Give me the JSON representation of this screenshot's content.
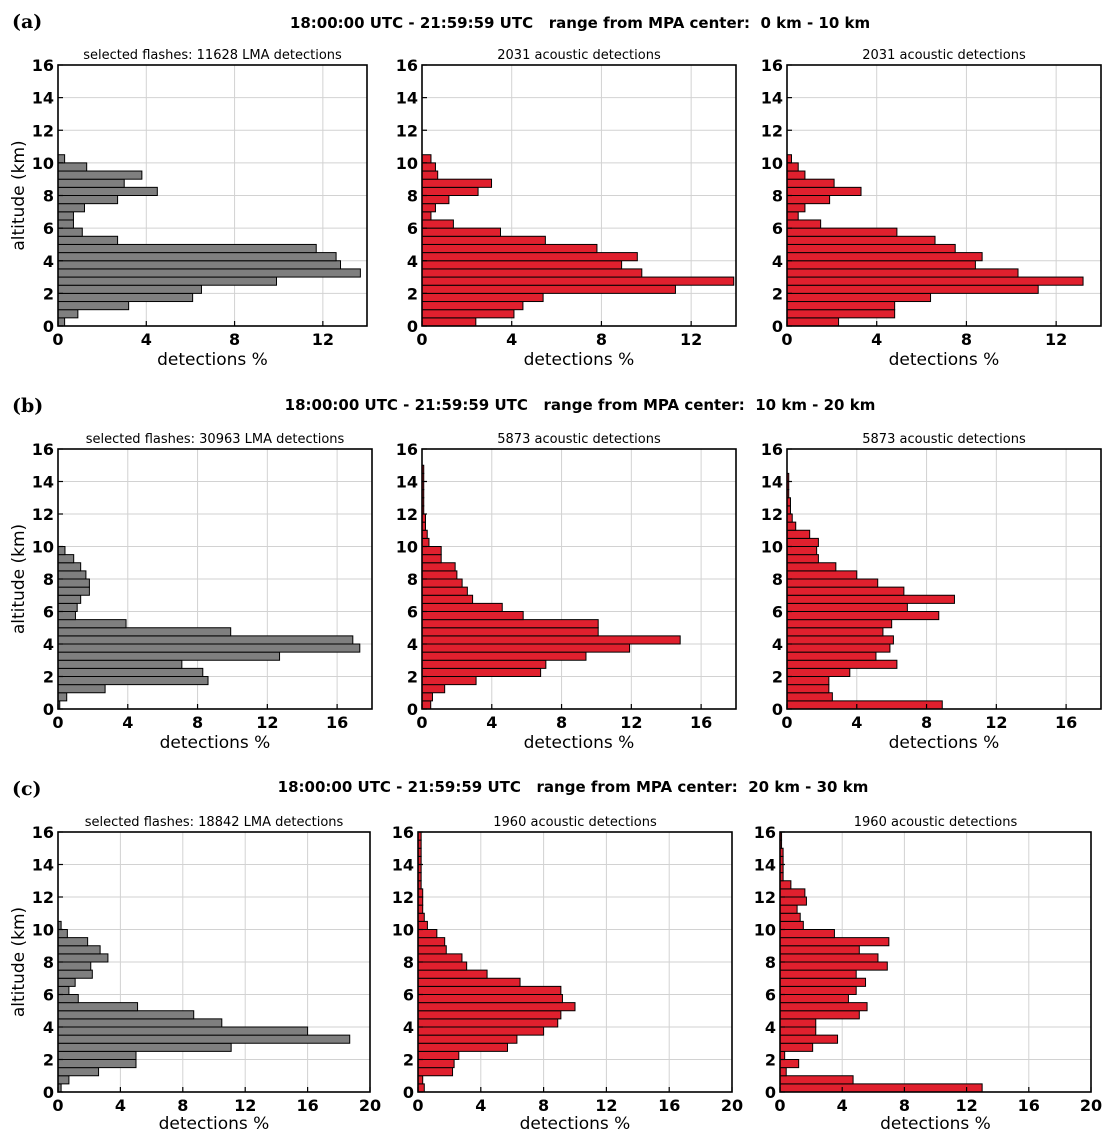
{
  "chart_data": [
    {
      "row_label": "(a)",
      "title": "18:00:00 UTC - 21:59:59 UTC   range from MPA center:  0 km - 10 km",
      "panels": [
        {
          "type": "bar",
          "orientation": "horizontal",
          "subtitle": "selected flashes: 11628 LMA detections",
          "color": "#7f7f7f",
          "xlabel": "detections %",
          "ylabel": "altitude (km)",
          "xlim": [
            0,
            14
          ],
          "xticks": [
            0,
            4,
            8,
            12
          ],
          "ylim": [
            0,
            16
          ],
          "yticks": [
            0,
            2,
            4,
            6,
            8,
            10,
            12,
            14,
            16
          ],
          "bin_km": 0.5,
          "values": [
            0.3,
            0.9,
            3.2,
            6.1,
            6.5,
            9.9,
            13.7,
            12.8,
            12.6,
            11.7,
            2.7,
            1.1,
            0.7,
            0.7,
            1.2,
            2.7,
            4.5,
            3.0,
            3.8,
            1.3,
            0.3
          ]
        },
        {
          "type": "bar",
          "orientation": "horizontal",
          "subtitle": "2031 acoustic detections",
          "color": "#e0202e",
          "xlabel": "detections %",
          "xlim": [
            0,
            14
          ],
          "xticks": [
            0,
            4,
            8,
            12
          ],
          "ylim": [
            0,
            16
          ],
          "yticks": [
            0,
            2,
            4,
            6,
            8,
            10,
            12,
            14,
            16
          ],
          "bin_km": 0.5,
          "values": [
            2.4,
            4.1,
            4.5,
            5.4,
            11.3,
            13.9,
            9.8,
            8.9,
            9.6,
            7.8,
            5.5,
            3.5,
            1.4,
            0.4,
            0.6,
            1.2,
            2.5,
            3.1,
            0.7,
            0.6,
            0.4
          ]
        },
        {
          "type": "bar",
          "orientation": "horizontal",
          "subtitle": "2031 acoustic detections",
          "color": "#e0202e",
          "xlabel": "detections %",
          "xlim": [
            0,
            14
          ],
          "xticks": [
            0,
            4,
            8,
            12
          ],
          "ylim": [
            0,
            16
          ],
          "yticks": [
            0,
            2,
            4,
            6,
            8,
            10,
            12,
            14,
            16
          ],
          "bin_km": 0.5,
          "values": [
            2.3,
            4.8,
            4.8,
            6.4,
            11.2,
            13.2,
            10.3,
            8.4,
            8.7,
            7.5,
            6.6,
            4.9,
            1.5,
            0.5,
            0.8,
            1.9,
            3.3,
            2.1,
            0.8,
            0.5,
            0.2
          ]
        }
      ]
    },
    {
      "row_label": "(b)",
      "title": "18:00:00 UTC - 21:59:59 UTC   range from MPA center:  10 km - 20 km",
      "panels": [
        {
          "type": "bar",
          "orientation": "horizontal",
          "subtitle": "selected flashes: 30963 LMA detections",
          "color": "#7f7f7f",
          "xlabel": "detections %",
          "ylabel": "altitude (km)",
          "xlim": [
            0,
            18
          ],
          "xticks": [
            0,
            4,
            8,
            12,
            16
          ],
          "ylim": [
            0,
            16
          ],
          "yticks": [
            0,
            2,
            4,
            6,
            8,
            10,
            12,
            14,
            16
          ],
          "bin_km": 0.5,
          "values": [
            0.1,
            0.5,
            2.7,
            8.6,
            8.3,
            7.1,
            12.7,
            17.3,
            16.9,
            9.9,
            3.9,
            1.0,
            1.1,
            1.3,
            1.8,
            1.8,
            1.6,
            1.3,
            0.9,
            0.4
          ],
          "_": ""
        },
        {
          "type": "bar",
          "orientation": "horizontal",
          "subtitle": "5873 acoustic detections",
          "color": "#e0202e",
          "xlabel": "detections %",
          "xlim": [
            0,
            18
          ],
          "xticks": [
            0,
            4,
            8,
            12,
            16
          ],
          "ylim": [
            0,
            16
          ],
          "yticks": [
            0,
            2,
            4,
            6,
            8,
            10,
            12,
            14,
            16
          ],
          "bin_km": 0.5,
          "values": [
            0.5,
            0.6,
            1.3,
            3.1,
            6.8,
            7.1,
            9.4,
            11.9,
            14.8,
            10.1,
            10.1,
            5.8,
            4.6,
            2.9,
            2.6,
            2.3,
            2.0,
            1.9,
            1.1,
            1.1,
            0.4,
            0.3,
            0.2,
            0.2,
            0.1,
            0.1,
            0.1,
            0.1,
            0.1,
            0.1
          ]
        },
        {
          "type": "bar",
          "orientation": "horizontal",
          "subtitle": "5873 acoustic detections",
          "color": "#e0202e",
          "xlabel": "detections %",
          "xlim": [
            0,
            18
          ],
          "xticks": [
            0,
            4,
            8,
            12,
            16
          ],
          "ylim": [
            0,
            16
          ],
          "yticks": [
            0,
            2,
            4,
            6,
            8,
            10,
            12,
            14,
            16
          ],
          "bin_km": 0.5,
          "values": [
            8.9,
            2.6,
            2.4,
            2.4,
            3.6,
            6.3,
            5.1,
            5.9,
            6.1,
            5.5,
            6.0,
            8.7,
            6.9,
            9.6,
            6.7,
            5.2,
            4.0,
            2.8,
            1.8,
            1.7,
            1.8,
            1.3,
            0.5,
            0.3,
            0.2,
            0.2,
            0.1,
            0.1,
            0.1
          ]
        }
      ]
    },
    {
      "row_label": "(c)",
      "title": "18:00:00 UTC - 21:59:59 UTC   range from MPA center:  20 km - 30 km",
      "panels": [
        {
          "type": "bar",
          "orientation": "horizontal",
          "subtitle": "selected flashes: 18842 LMA detections",
          "color": "#7f7f7f",
          "xlabel": "detections %",
          "ylabel": "altitude (km)",
          "xlim": [
            0,
            20
          ],
          "xticks": [
            0,
            4,
            8,
            12,
            16,
            20
          ],
          "ylim": [
            0,
            16
          ],
          "yticks": [
            0,
            2,
            4,
            6,
            8,
            10,
            12,
            14,
            16
          ],
          "bin_km": 0.5,
          "values": [
            0.2,
            0.7,
            2.6,
            5.0,
            5.0,
            11.1,
            18.7,
            16.0,
            10.5,
            8.7,
            5.1,
            1.3,
            0.7,
            1.1,
            2.2,
            2.1,
            3.2,
            2.7,
            1.9,
            0.6,
            0.2
          ]
        },
        {
          "type": "bar",
          "orientation": "horizontal",
          "subtitle": "1960 acoustic detections",
          "color": "#e0202e",
          "xlabel": "detections %",
          "xlim": [
            0,
            20
          ],
          "xticks": [
            0,
            4,
            8,
            12,
            16,
            20
          ],
          "ylim": [
            0,
            16
          ],
          "yticks": [
            0,
            2,
            4,
            6,
            8,
            10,
            12,
            14,
            16
          ],
          "bin_km": 0.5,
          "values": [
            0.4,
            0.3,
            2.2,
            2.3,
            2.6,
            5.7,
            6.3,
            8.0,
            8.9,
            9.1,
            10.0,
            9.2,
            9.1,
            6.5,
            4.4,
            3.1,
            2.8,
            1.8,
            1.7,
            1.2,
            0.6,
            0.4,
            0.3,
            0.3,
            0.3,
            0.2,
            0.2,
            0.2,
            0.2,
            0.2,
            0.2,
            0.2
          ]
        },
        {
          "type": "bar",
          "orientation": "horizontal",
          "subtitle": "1960 acoustic detections",
          "color": "#e0202e",
          "xlabel": "detections %",
          "xlim": [
            0,
            20
          ],
          "xticks": [
            0,
            4,
            8,
            12,
            16,
            20
          ],
          "ylim": [
            0,
            16
          ],
          "yticks": [
            0,
            2,
            4,
            6,
            8,
            10,
            12,
            14,
            16
          ],
          "bin_km": 0.5,
          "values": [
            13.0,
            4.7,
            0.4,
            1.2,
            0.3,
            2.1,
            3.7,
            2.3,
            2.3,
            5.1,
            5.6,
            4.4,
            4.9,
            5.5,
            4.9,
            6.9,
            6.3,
            5.1,
            7.0,
            3.5,
            1.5,
            1.3,
            1.1,
            1.7,
            1.6,
            0.7,
            0.2,
            0.2,
            0.2,
            0.2,
            0.1,
            0.1
          ]
        }
      ]
    }
  ]
}
